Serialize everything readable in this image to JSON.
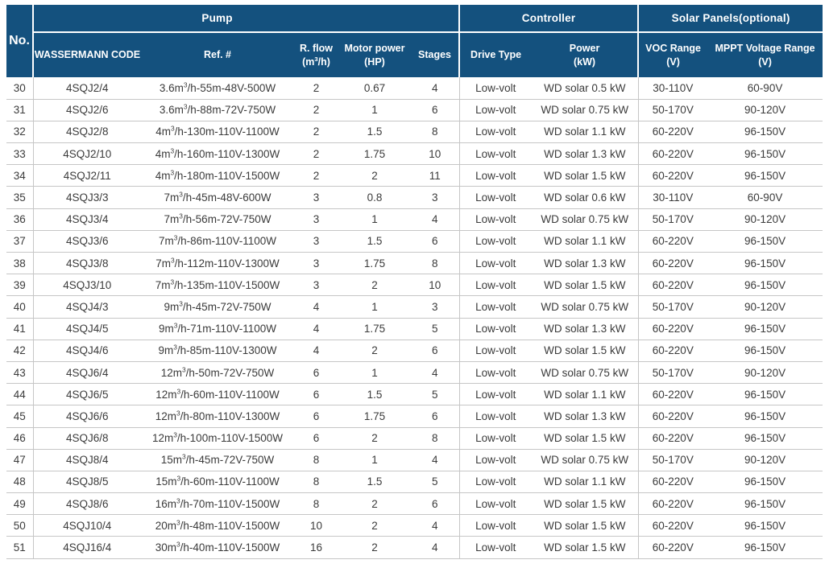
{
  "colors": {
    "header_bg": "#14517E",
    "header_text": "#FFFFFF",
    "grid_line": "#C6C6C6",
    "body_text": "#3B3B3B"
  },
  "table": {
    "corner_label": "No.",
    "groups": [
      {
        "label": "Pump"
      },
      {
        "label": "Controller"
      },
      {
        "label": "Solar Panels(optional)"
      }
    ],
    "columns": [
      {
        "id": "code",
        "label": "WASSERMANN CODE",
        "label2": ""
      },
      {
        "id": "ref",
        "label": "Ref. #",
        "label2": ""
      },
      {
        "id": "flow",
        "label": "R. flow",
        "label2": "(m³/h)"
      },
      {
        "id": "hp",
        "label": "Motor power",
        "label2": "(HP)"
      },
      {
        "id": "stages",
        "label": "Stages",
        "label2": ""
      },
      {
        "id": "drive",
        "label": "Drive Type",
        "label2": ""
      },
      {
        "id": "power",
        "label": "Power",
        "label2": "(kW)"
      },
      {
        "id": "voc",
        "label": "VOC Range",
        "label2": "(V)"
      },
      {
        "id": "mppt",
        "label": "MPPT Voltage Range",
        "label2": "(V)"
      }
    ],
    "fields": [
      "no",
      "code",
      "ref",
      "flow",
      "hp",
      "stages",
      "drive",
      "power",
      "voc",
      "mppt"
    ],
    "rows": [
      [
        "30",
        "4SQJ2/4",
        "3.6m³/h-55m-48V-500W",
        "2",
        "0.67",
        "4",
        "Low-volt",
        "WD solar 0.5 kW",
        "30-110V",
        "60-90V"
      ],
      [
        "31",
        "4SQJ2/6",
        "3.6m³/h-88m-72V-750W",
        "2",
        "1",
        "6",
        "Low-volt",
        "WD solar 0.75 kW",
        "50-170V",
        "90-120V"
      ],
      [
        "32",
        "4SQJ2/8",
        "4m³/h-130m-110V-1100W",
        "2",
        "1.5",
        "8",
        "Low-volt",
        "WD solar 1.1 kW",
        "60-220V",
        "96-150V"
      ],
      [
        "33",
        "4SQJ2/10",
        "4m³/h-160m-110V-1300W",
        "2",
        "1.75",
        "10",
        "Low-volt",
        "WD solar 1.3 kW",
        "60-220V",
        "96-150V"
      ],
      [
        "34",
        "4SQJ2/11",
        "4m³/h-180m-110V-1500W",
        "2",
        "2",
        "11",
        "Low-volt",
        "WD solar 1.5 kW",
        "60-220V",
        "96-150V"
      ],
      [
        "35",
        "4SQJ3/3",
        "7m³/h-45m-48V-600W",
        "3",
        "0.8",
        "3",
        "Low-volt",
        "WD solar 0.6 kW",
        "30-110V",
        "60-90V"
      ],
      [
        "36",
        "4SQJ3/4",
        "7m³/h-56m-72V-750W",
        "3",
        "1",
        "4",
        "Low-volt",
        "WD solar 0.75 kW",
        "50-170V",
        "90-120V"
      ],
      [
        "37",
        "4SQJ3/6",
        "7m³/h-86m-110V-1100W",
        "3",
        "1.5",
        "6",
        "Low-volt",
        "WD solar 1.1 kW",
        "60-220V",
        "96-150V"
      ],
      [
        "38",
        "4SQJ3/8",
        "7m³/h-112m-110V-1300W",
        "3",
        "1.75",
        "8",
        "Low-volt",
        "WD solar 1.3 kW",
        "60-220V",
        "96-150V"
      ],
      [
        "39",
        "4SQJ3/10",
        "7m³/h-135m-110V-1500W",
        "3",
        "2",
        "10",
        "Low-volt",
        "WD solar 1.5 kW",
        "60-220V",
        "96-150V"
      ],
      [
        "40",
        "4SQJ4/3",
        "9m³/h-45m-72V-750W",
        "4",
        "1",
        "3",
        "Low-volt",
        "WD solar 0.75 kW",
        "50-170V",
        "90-120V"
      ],
      [
        "41",
        "4SQJ4/5",
        "9m³/h-71m-110V-1100W",
        "4",
        "1.75",
        "5",
        "Low-volt",
        "WD solar 1.3 kW",
        "60-220V",
        "96-150V"
      ],
      [
        "42",
        "4SQJ4/6",
        "9m³/h-85m-110V-1300W",
        "4",
        "2",
        "6",
        "Low-volt",
        "WD solar 1.5 kW",
        "60-220V",
        "96-150V"
      ],
      [
        "43",
        "4SQJ6/4",
        "12m³/h-50m-72V-750W",
        "6",
        "1",
        "4",
        "Low-volt",
        "WD solar 0.75 kW",
        "50-170V",
        "90-120V"
      ],
      [
        "44",
        "4SQJ6/5",
        "12m³/h-60m-110V-1100W",
        "6",
        "1.5",
        "5",
        "Low-volt",
        "WD solar 1.1 kW",
        "60-220V",
        "96-150V"
      ],
      [
        "45",
        "4SQJ6/6",
        "12m³/h-80m-110V-1300W",
        "6",
        "1.75",
        "6",
        "Low-volt",
        "WD solar 1.3 kW",
        "60-220V",
        "96-150V"
      ],
      [
        "46",
        "4SQJ6/8",
        "12m³/h-100m-110V-1500W",
        "6",
        "2",
        "8",
        "Low-volt",
        "WD solar 1.5 kW",
        "60-220V",
        "96-150V"
      ],
      [
        "47",
        "4SQJ8/4",
        "15m³/h-45m-72V-750W",
        "8",
        "1",
        "4",
        "Low-volt",
        "WD solar 0.75 kW",
        "50-170V",
        "90-120V"
      ],
      [
        "48",
        "4SQJ8/5",
        "15m³/h-60m-110V-1100W",
        "8",
        "1.5",
        "5",
        "Low-volt",
        "WD solar 1.1 kW",
        "60-220V",
        "96-150V"
      ],
      [
        "49",
        "4SQJ8/6",
        "16m³/h-70m-110V-1500W",
        "8",
        "2",
        "6",
        "Low-volt",
        "WD solar 1.5 kW",
        "60-220V",
        "96-150V"
      ],
      [
        "50",
        "4SQJ10/4",
        "20m³/h-48m-110V-1500W",
        "10",
        "2",
        "4",
        "Low-volt",
        "WD solar 1.5 kW",
        "60-220V",
        "96-150V"
      ],
      [
        "51",
        "4SQJ16/4",
        "30m³/h-40m-110V-1500W",
        "16",
        "2",
        "4",
        "Low-volt",
        "WD solar 1.5 kW",
        "60-220V",
        "96-150V"
      ]
    ]
  }
}
